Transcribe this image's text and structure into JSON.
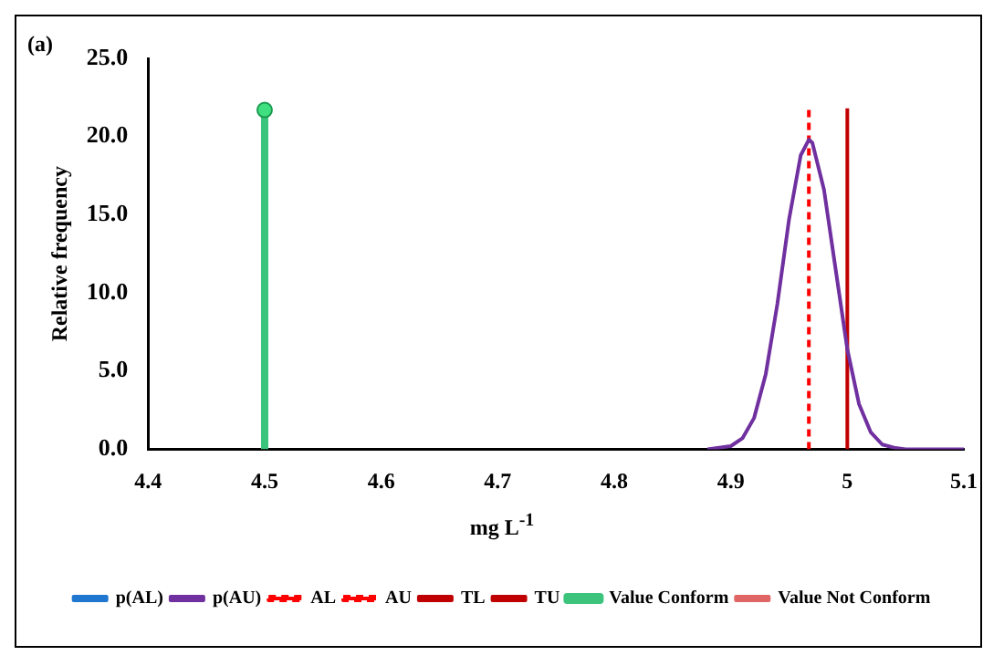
{
  "chart_data": {
    "type": "line",
    "annotations": [
      "(a)"
    ],
    "xlabel": "mg L$^{-1}$",
    "ylabel": "Relative frequency",
    "xlim": [
      4.4,
      5.1
    ],
    "xticks": [
      4.4,
      4.5,
      4.6,
      4.7,
      4.8,
      4.9,
      5,
      5.1
    ],
    "ylim": [
      0,
      25
    ],
    "yticks": [
      {
        "value": 0,
        "label": "0.0"
      },
      {
        "value": 5,
        "label": "5.0"
      },
      {
        "value": 10,
        "label": "10.0"
      },
      {
        "value": 15,
        "label": "15.0"
      },
      {
        "value": 20,
        "label": "20.0"
      },
      {
        "value": 25,
        "label": "25.0"
      }
    ],
    "grid": false,
    "legend": "bottom",
    "series": [
      {
        "name": "p(AL)",
        "color": "#1f77d0"
      },
      {
        "name": "p(AU)",
        "color": "#7030a0",
        "x": [
          4.88,
          4.9,
          4.91,
          4.92,
          4.93,
          4.94,
          4.95,
          4.96,
          4.967,
          4.97,
          4.98,
          4.99,
          5.0,
          5.01,
          5.02,
          5.03,
          5.04,
          5.05,
          5.1
        ],
        "values": [
          0,
          0.2,
          0.7,
          2.0,
          4.8,
          9.3,
          14.7,
          18.8,
          19.8,
          19.6,
          16.6,
          11.5,
          6.4,
          2.9,
          1.1,
          0.3,
          0.1,
          0,
          0
        ]
      },
      {
        "name": "AL",
        "color": "#ff0000",
        "line_style": "dashed",
        "x": [
          4.967,
          4.967
        ],
        "values": [
          0,
          21.8
        ]
      },
      {
        "name": "AU",
        "color": "#ff0000",
        "line_style": "dashed"
      },
      {
        "name": "TL",
        "color": "#c00000"
      },
      {
        "name": "TU",
        "color": "#c00000",
        "x": [
          5.0,
          5.0
        ],
        "values": [
          0,
          21.8
        ]
      },
      {
        "name": "Value Conform",
        "color": "#3cc47c",
        "marker": "circle",
        "x": [
          4.5,
          4.5
        ],
        "values": [
          0,
          21.7
        ]
      },
      {
        "name": "Value Not Conform",
        "color": "#e06666"
      }
    ]
  }
}
